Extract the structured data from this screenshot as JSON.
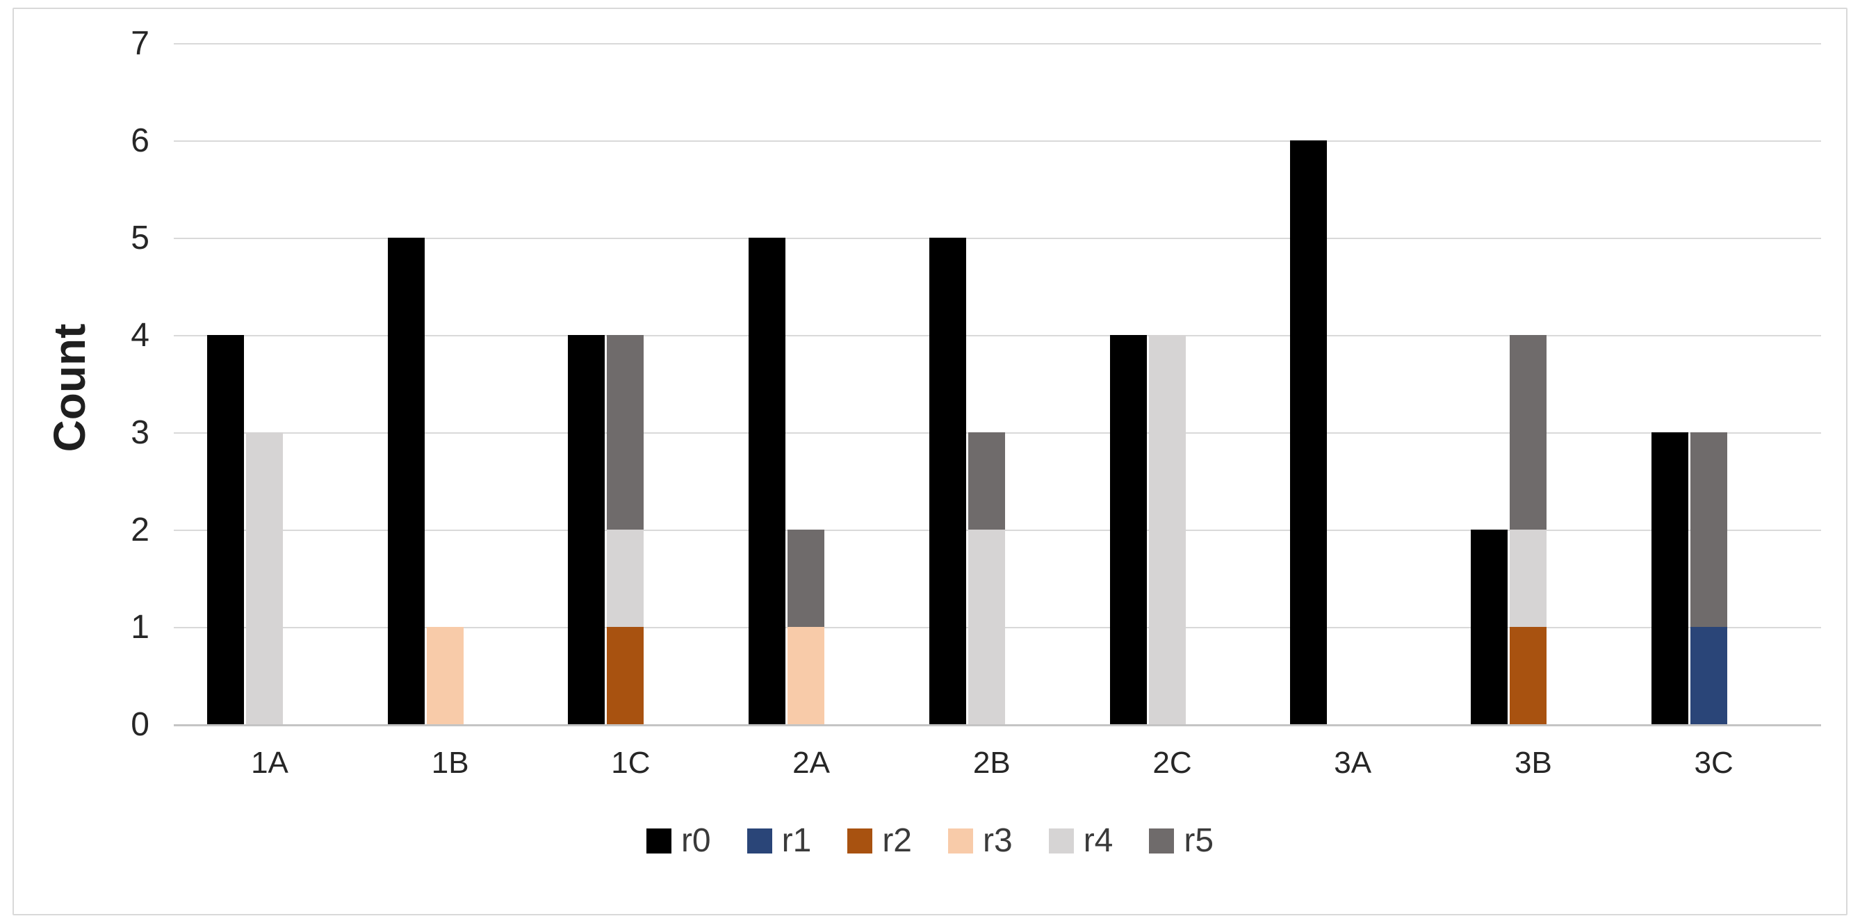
{
  "chart_data": {
    "type": "bar",
    "subtype": "clustered-plus-stacked",
    "title": "",
    "ylabel": "Count",
    "xlabel": "",
    "ylim": [
      0,
      7
    ],
    "yticks": [
      "0",
      "1",
      "2",
      "3",
      "4",
      "5",
      "6",
      "7"
    ],
    "grid": true,
    "legend_position": "bottom",
    "categories": [
      "1A",
      "1B",
      "1C",
      "2A",
      "2B",
      "2C",
      "3A",
      "3B",
      "3C"
    ],
    "series": [
      {
        "name": "r0",
        "color": "#000000",
        "stack": "clustered",
        "values": [
          4,
          5,
          4,
          5,
          5,
          4,
          6,
          2,
          3
        ]
      },
      {
        "name": "r1",
        "color": "#2A4578",
        "stack": "stacked",
        "values": [
          0,
          0,
          0,
          0,
          0,
          0,
          0,
          0,
          1
        ]
      },
      {
        "name": "r2",
        "color": "#A85210",
        "stack": "stacked",
        "values": [
          0,
          0,
          1,
          0,
          0,
          0,
          0,
          1,
          0
        ]
      },
      {
        "name": "r3",
        "color": "#F8CBA9",
        "stack": "stacked",
        "values": [
          0,
          1,
          0,
          1,
          0,
          0,
          0,
          0,
          0
        ]
      },
      {
        "name": "r4",
        "color": "#D6D4D4",
        "stack": "stacked",
        "values": [
          3,
          0,
          1,
          0,
          2,
          4,
          0,
          1,
          0
        ]
      },
      {
        "name": "r5",
        "color": "#6F6B6B",
        "stack": "stacked",
        "values": [
          0,
          0,
          2,
          1,
          1,
          0,
          0,
          2,
          2
        ]
      }
    ],
    "legend": [
      {
        "label": "r0",
        "color": "#000000"
      },
      {
        "label": "r1",
        "color": "#2A4578"
      },
      {
        "label": "r2",
        "color": "#A85210"
      },
      {
        "label": "r3",
        "color": "#F8CBA9"
      },
      {
        "label": "r4",
        "color": "#D6D4D4"
      },
      {
        "label": "r5",
        "color": "#6F6B6B"
      }
    ]
  }
}
